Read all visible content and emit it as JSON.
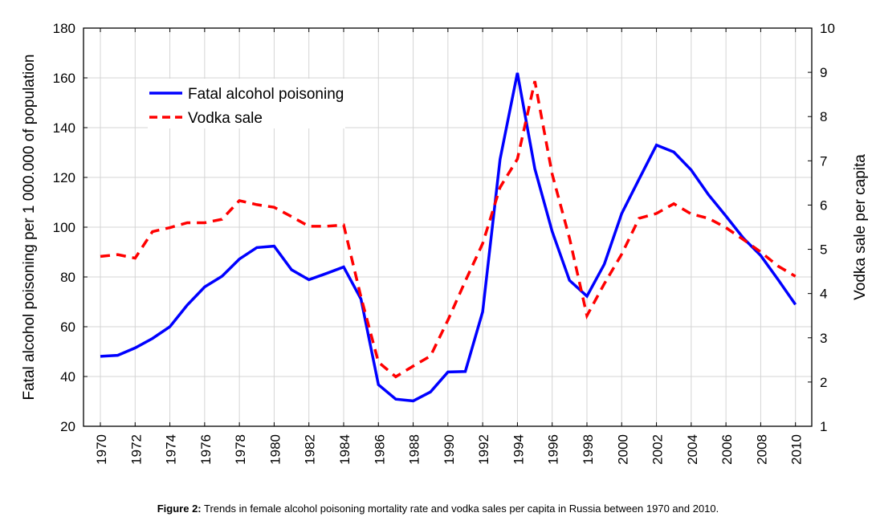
{
  "caption": {
    "label": "Figure 2:",
    "text": " Trends in female alcohol poisoning mortality rate and vodka sales per capita in Russia between 1970 and 2010."
  },
  "chart_data": {
    "type": "line",
    "title": "",
    "xlabel": "",
    "ylabel": "Fatal alcohol poisoning per 1 000.000 of population",
    "y2label": "Vodka sale per capita",
    "xlim": [
      1970,
      2010
    ],
    "ylim": [
      20,
      180
    ],
    "y2lim": [
      1,
      10
    ],
    "grid": true,
    "legend_position": "top-left",
    "x_ticks": [
      "1970",
      "1972",
      "1974",
      "1976",
      "1978",
      "1980",
      "1982",
      "1984",
      "1986",
      "1988",
      "1990",
      "1992",
      "1994",
      "1996",
      "1998",
      "2000",
      "2002",
      "2004",
      "2006",
      "2008",
      "2010"
    ],
    "y_ticks": [
      "20",
      "40",
      "60",
      "80",
      "100",
      "120",
      "140",
      "160",
      "180"
    ],
    "y2_ticks": [
      "1",
      "2",
      "3",
      "4",
      "5",
      "6",
      "7",
      "8",
      "9",
      "10"
    ],
    "x": [
      1970,
      1971,
      1972,
      1973,
      1974,
      1975,
      1976,
      1977,
      1978,
      1979,
      1980,
      1981,
      1982,
      1983,
      1984,
      1985,
      1986,
      1987,
      1988,
      1989,
      1990,
      1991,
      1992,
      1993,
      1994,
      1995,
      1996,
      1997,
      1998,
      1999,
      2000,
      2001,
      2002,
      2003,
      2004,
      2005,
      2006,
      2007,
      2008,
      2009,
      2010
    ],
    "series": [
      {
        "name": "Fatal alcohol poisoning",
        "axis": "left",
        "color": "#0000FF",
        "style": "solid",
        "values": [
          48.1,
          48.5,
          51.5,
          55.3,
          60.0,
          68.7,
          76.0,
          80.3,
          87.2,
          91.8,
          92.4,
          82.9,
          78.9,
          81.4,
          84.0,
          71.1,
          36.7,
          30.9,
          30.2,
          33.8,
          41.8,
          42.0,
          66.0,
          127.3,
          162.0,
          123.5,
          98.3,
          78.6,
          72.3,
          85.1,
          105.5,
          119.3,
          133.0,
          130.2,
          123.0,
          113.0,
          104.5,
          95.6,
          88.6,
          78.9,
          68.9
        ]
      },
      {
        "name": "Vodka sale",
        "axis": "right",
        "color": "#FF0000",
        "style": "dashed",
        "values": [
          4.84,
          4.88,
          4.8,
          5.4,
          5.49,
          5.6,
          5.6,
          5.68,
          6.1,
          6.01,
          5.95,
          5.74,
          5.52,
          5.52,
          5.55,
          3.92,
          2.45,
          2.12,
          2.36,
          2.59,
          3.4,
          4.28,
          5.13,
          6.4,
          7.04,
          8.8,
          6.7,
          5.25,
          3.5,
          4.22,
          4.89,
          5.7,
          5.81,
          6.03,
          5.8,
          5.7,
          5.49,
          5.22,
          4.94,
          4.62,
          4.39
        ]
      }
    ]
  }
}
